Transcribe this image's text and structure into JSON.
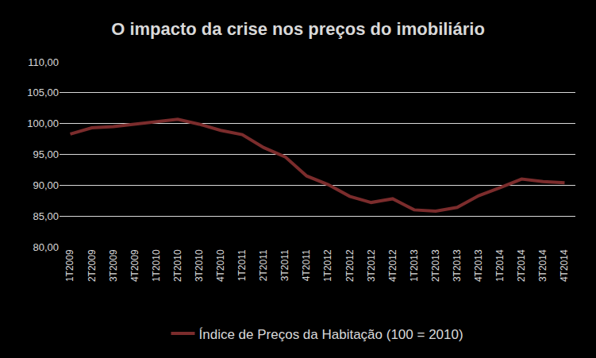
{
  "chart_data": {
    "type": "line",
    "title": "O impacto da crise nos preços do imobiliário",
    "categories": [
      "1T2009",
      "2T2009",
      "3T2009",
      "4T2009",
      "1T2010",
      "2T2010",
      "3T2010",
      "4T2010",
      "1T2011",
      "2T2011",
      "3T2011",
      "4T2011",
      "1T2012",
      "2T2012",
      "3T2012",
      "4T2012",
      "1T2013",
      "2T2013",
      "3T2013",
      "4T2013",
      "1T2014",
      "2T2014",
      "3T2014",
      "4T2014"
    ],
    "series": [
      {
        "name": "Índice de Preços da Habitação (100 = 2010)",
        "color": "#7b2c2c",
        "values": [
          98.3,
          99.3,
          99.5,
          99.9,
          100.4,
          100.7,
          99.9,
          98.9,
          98.2,
          96.1,
          94.6,
          91.5,
          90.1,
          88.2,
          87.2,
          87.8,
          86.0,
          85.8,
          86.4,
          88.3,
          89.6,
          91.0,
          90.6,
          90.4
        ]
      }
    ],
    "ylim": [
      80,
      110
    ],
    "yticks": [
      {
        "value": 80,
        "label": "80,00"
      },
      {
        "value": 85,
        "label": "85,00"
      },
      {
        "value": 90,
        "label": "90,00"
      },
      {
        "value": 95,
        "label": "95,00"
      },
      {
        "value": 100,
        "label": "100,00"
      },
      {
        "value": 105,
        "label": "105,00"
      },
      {
        "value": 110,
        "label": "110,00"
      }
    ],
    "grid": true,
    "legend": "bottom"
  }
}
